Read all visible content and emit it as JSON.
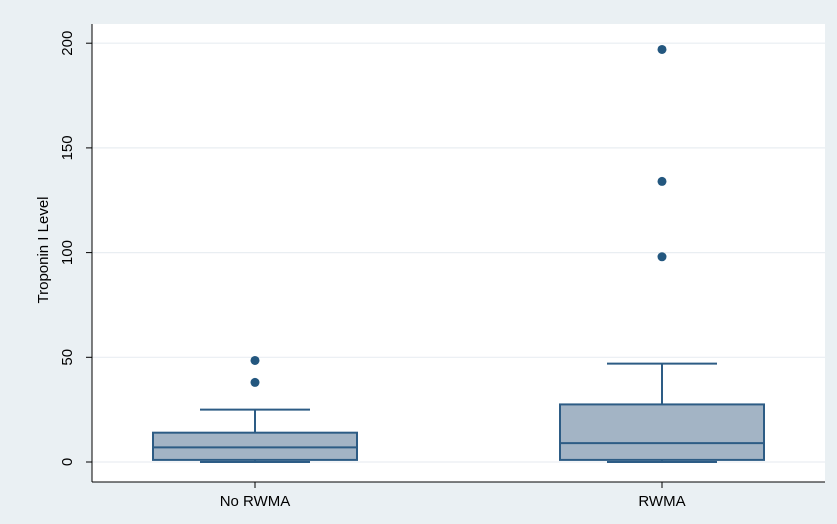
{
  "chart_data": {
    "type": "box",
    "ylabel": "Troponin I Level",
    "xlabel": "",
    "ylim": [
      -10,
      210
    ],
    "yticks": [
      0,
      50,
      100,
      150,
      200
    ],
    "grid": true,
    "legend": "none",
    "categories": [
      "No RWMA",
      "RWMA"
    ],
    "boxes": [
      {
        "category": "No RWMA",
        "whisker_low": 0,
        "q1": 1,
        "median": 7,
        "q3": 14,
        "whisker_high": 25,
        "outliers": [
          38,
          48.5
        ]
      },
      {
        "category": "RWMA",
        "whisker_low": 0,
        "q1": 1,
        "median": 9,
        "q3": 27.5,
        "whisker_high": 47,
        "outliers": [
          98,
          134,
          197
        ]
      }
    ],
    "colors": {
      "box_fill": "#a3b4c5",
      "box_stroke": "#2d5c85",
      "outlier": "#23577f",
      "grid": "#e9eef2",
      "plot_bg": "#ffffff",
      "outer_bg": "#eaf0f3"
    }
  }
}
